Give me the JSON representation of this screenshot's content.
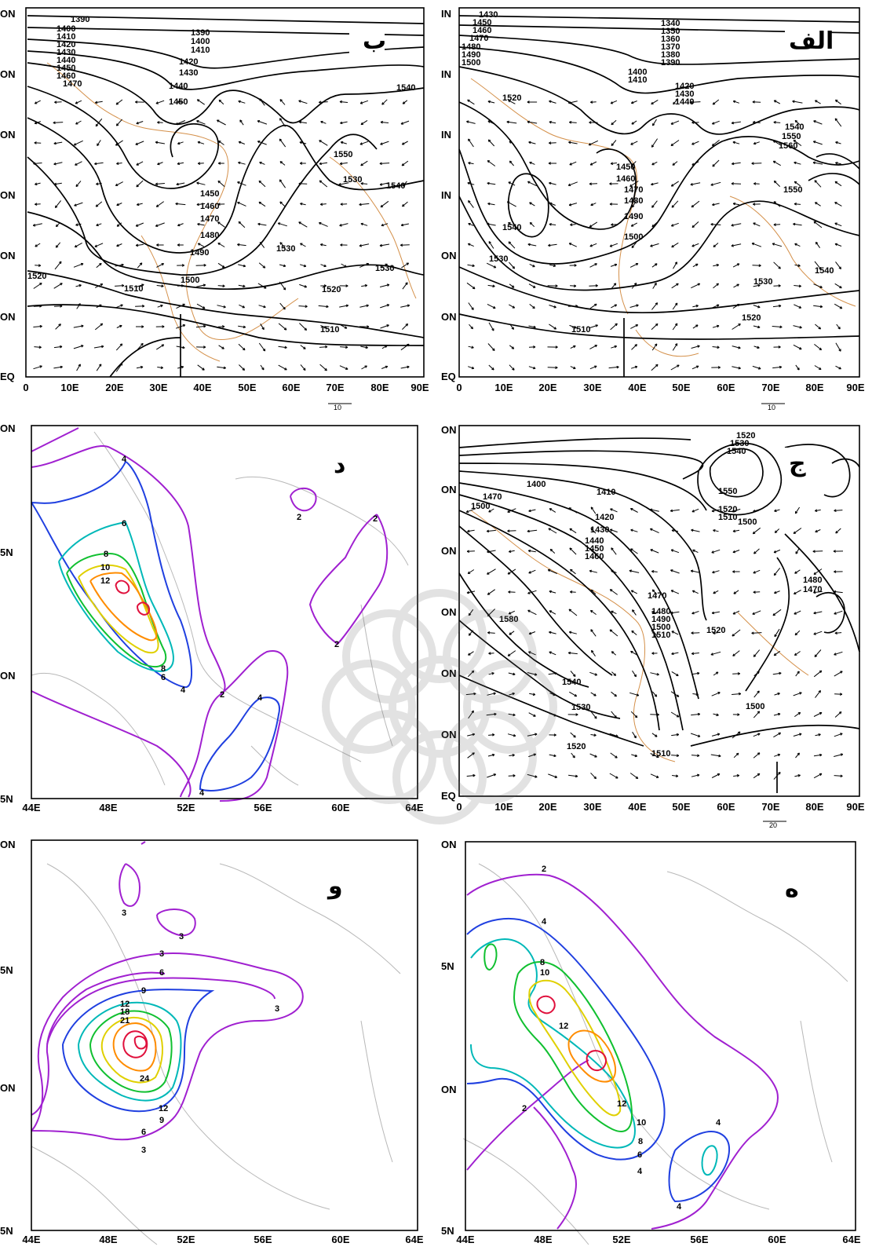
{
  "chart_data": [
    {
      "panel": "ب",
      "type": "contour",
      "field": "geopotential height with wind vectors",
      "x_ticks": [
        "0",
        "10E",
        "20E",
        "30E",
        "40E",
        "50E",
        "60E",
        "70E",
        "80E",
        "90E"
      ],
      "y_ticks": [
        "EQ",
        "ON",
        "ON",
        "ON",
        "ON",
        "ON",
        "ON"
      ],
      "xlim": [
        0,
        90
      ],
      "ylim": [
        0,
        70
      ],
      "contour_labels": [
        "1390",
        "1400",
        "1410",
        "1420",
        "1430",
        "1440",
        "1450",
        "1460",
        "1470",
        "1390",
        "1400",
        "1410",
        "1420",
        "1430",
        "1440",
        "1450",
        "1450",
        "1460",
        "1470",
        "1480",
        "1490",
        "1500",
        "1510",
        "1520",
        "1530",
        "1530",
        "1530",
        "1540",
        "1540",
        "1550",
        "1520",
        "1510"
      ],
      "reference_vector_label": "10"
    },
    {
      "panel": "الف",
      "type": "contour",
      "field": "geopotential height with wind vectors",
      "x_ticks": [
        "0",
        "10E",
        "20E",
        "30E",
        "40E",
        "50E",
        "60E",
        "70E",
        "80E",
        "90E"
      ],
      "y_ticks": [
        "EQ",
        "ON",
        "ON",
        "IN",
        "IN",
        "IN",
        "IN"
      ],
      "xlim": [
        0,
        90
      ],
      "ylim": [
        0,
        70
      ],
      "contour_labels": [
        "1430",
        "1450",
        "1460",
        "1470",
        "1480",
        "1490",
        "1500",
        "1340",
        "1350",
        "1360",
        "1370",
        "1380",
        "1390",
        "1400",
        "1410",
        "1420",
        "1430",
        "1440",
        "1520",
        "1540",
        "1550",
        "1560",
        "1450",
        "1460",
        "1470",
        "1480",
        "1490",
        "1500",
        "1540",
        "1550",
        "1530",
        "1530",
        "1540",
        "1520",
        "1510"
      ],
      "reference_vector_label": "10"
    },
    {
      "panel": "د",
      "type": "contour",
      "field": "colored isolines",
      "x_ticks": [
        "44E",
        "48E",
        "52E",
        "56E",
        "60E",
        "64E"
      ],
      "y_ticks": [
        "5N",
        "ON",
        "5N",
        "ON"
      ],
      "xlim": [
        44,
        64
      ],
      "ylim": [
        25,
        40
      ],
      "contour_labels": [
        "4",
        "6",
        "8",
        "10",
        "12",
        "8",
        "6",
        "4",
        "2",
        "2",
        "2",
        "2",
        "4",
        "4"
      ]
    },
    {
      "panel": "ج",
      "type": "contour",
      "field": "geopotential height with wind vectors",
      "x_ticks": [
        "0",
        "10E",
        "20E",
        "30E",
        "40E",
        "50E",
        "60E",
        "70E",
        "80E",
        "90E"
      ],
      "y_ticks": [
        "EQ",
        "ON",
        "ON",
        "ON",
        "ON",
        "ON",
        "ON"
      ],
      "xlim": [
        0,
        90
      ],
      "ylim": [
        0,
        70
      ],
      "contour_labels": [
        "1520",
        "1530",
        "1540",
        "1400",
        "1470",
        "1500",
        "1410",
        "1420",
        "1430",
        "1440",
        "1450",
        "1460",
        "1550",
        "1520",
        "1510",
        "1500",
        "1480",
        "1470",
        "1470",
        "1480",
        "1490",
        "1500",
        "1510",
        "1520",
        "1580",
        "1540",
        "1530",
        "1520",
        "1510",
        "1500"
      ],
      "reference_vector_label": "20"
    },
    {
      "panel": "و",
      "type": "contour",
      "field": "colored isolines",
      "x_ticks": [
        "44E",
        "48E",
        "52E",
        "56E",
        "60E",
        "64E"
      ],
      "y_ticks": [
        "5N",
        "ON",
        "5N",
        "ON"
      ],
      "xlim": [
        44,
        64
      ],
      "ylim": [
        25,
        40
      ],
      "contour_labels": [
        "3",
        "3",
        "3",
        "6",
        "9",
        "12",
        "18",
        "21",
        "24",
        "12",
        "9",
        "6",
        "3",
        "3"
      ]
    },
    {
      "panel": "ه",
      "type": "contour",
      "field": "colored isolines",
      "x_ticks": [
        "44E",
        "48E",
        "52E",
        "56E",
        "60E",
        "64E"
      ],
      "y_ticks": [
        "5N",
        "ON",
        "5N",
        "ON"
      ],
      "xlim": [
        44,
        64
      ],
      "ylim": [
        25,
        40
      ],
      "contour_labels": [
        "2",
        "4",
        "8",
        "10",
        "12",
        "12",
        "10",
        "8",
        "6",
        "4",
        "4",
        "4",
        "2"
      ]
    }
  ],
  "colors": {
    "isoline_2": "#a020d0",
    "isoline_4": "#2040e0",
    "isoline_6": "#00b8b8",
    "isoline_8": "#10c030",
    "isoline_10": "#e0d000",
    "isoline_12": "#ff8c00",
    "isoline_max": "#e0103c",
    "coastline": "#d4904a",
    "border": "#b8b8b8"
  }
}
